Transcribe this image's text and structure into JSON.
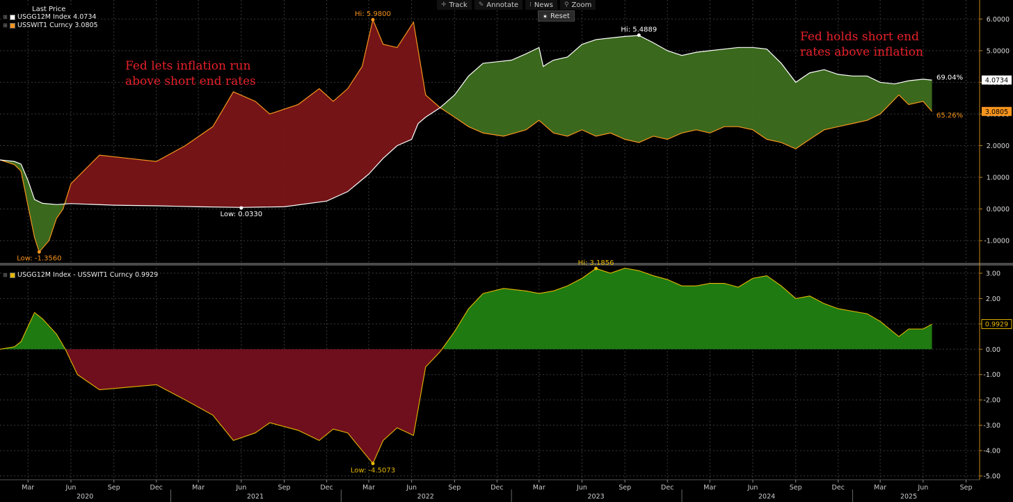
{
  "toolbar": {
    "track": "Track",
    "annotate": "Annotate",
    "news": "News",
    "zoom": "Zoom",
    "reset": "Reset"
  },
  "legend_top": {
    "header": "Last Price",
    "series": [
      {
        "label": "USGG12M Index  4.0734",
        "color": "#ffffff"
      },
      {
        "label": "USSWIT1 Curncy  3.0805",
        "color": "#f7941d"
      }
    ]
  },
  "legend_bottom": {
    "series": [
      {
        "label": "USGG12M Index - USSWIT1 Curncy  0.9929",
        "color": "#e6b800"
      }
    ]
  },
  "colors": {
    "rate_line": "#ffffff",
    "inflation_line": "#f7941d",
    "spread_line": "#e6b800",
    "fill_positive_top": "#3d6e1e",
    "fill_negative_top": "#7a1518",
    "fill_positive_bottom": "#1f7a12",
    "fill_negative_bottom": "#6f0f1e",
    "annotation_text": "#e8202a",
    "grid": "#3a3a3a",
    "axis": "#c8891c"
  },
  "chart_data": [
    {
      "type": "line",
      "panel": "top",
      "series": [
        {
          "name": "USGG12M Index",
          "last": "4.0734",
          "x": [
            "2020-01-01",
            "2020-02-01",
            "2020-02-15",
            "2020-03-01",
            "2020-03-15",
            "2020-04-01",
            "2020-05-01",
            "2020-06-01",
            "2020-09-01",
            "2020-12-01",
            "2021-03-01",
            "2021-06-01",
            "2021-09-01",
            "2021-12-01",
            "2022-01-15",
            "2022-03-01",
            "2022-04-01",
            "2022-05-01",
            "2022-06-01",
            "2022-06-15",
            "2022-07-01",
            "2022-08-01",
            "2022-09-01",
            "2022-10-01",
            "2022-11-01",
            "2022-12-01",
            "2023-01-01",
            "2023-02-01",
            "2023-03-01",
            "2023-03-10",
            "2023-03-20",
            "2023-04-01",
            "2023-05-01",
            "2023-06-01",
            "2023-07-01",
            "2023-08-01",
            "2023-09-01",
            "2023-10-01",
            "2023-11-01",
            "2023-12-01",
            "2024-01-01",
            "2024-02-01",
            "2024-03-01",
            "2024-04-01",
            "2024-05-01",
            "2024-06-01",
            "2024-07-01",
            "2024-08-01",
            "2024-09-01",
            "2024-10-01",
            "2024-11-01",
            "2024-12-01",
            "2025-01-01",
            "2025-02-01",
            "2025-03-01",
            "2025-04-01",
            "2025-05-01",
            "2025-06-01",
            "2025-06-20"
          ],
          "y": [
            1.55,
            1.5,
            1.42,
            0.9,
            0.3,
            0.18,
            0.14,
            0.17,
            0.12,
            0.1,
            0.07,
            0.05,
            0.07,
            0.25,
            0.55,
            1.1,
            1.6,
            2.0,
            2.2,
            2.7,
            2.9,
            3.2,
            3.6,
            4.2,
            4.6,
            4.65,
            4.7,
            4.9,
            5.1,
            4.5,
            4.6,
            4.7,
            4.8,
            5.2,
            5.35,
            5.4,
            5.45,
            5.48,
            5.25,
            5.0,
            4.85,
            4.95,
            5.0,
            5.05,
            5.1,
            5.1,
            5.05,
            4.6,
            4.0,
            4.3,
            4.4,
            4.25,
            4.2,
            4.2,
            4.0,
            3.95,
            4.05,
            4.1,
            4.07
          ]
        },
        {
          "name": "USSWIT1 Curncy",
          "last": "3.0805",
          "x": [
            "2020-01-01",
            "2020-02-01",
            "2020-02-15",
            "2020-03-01",
            "2020-03-15",
            "2020-03-25",
            "2020-04-15",
            "2020-05-01",
            "2020-05-15",
            "2020-06-01",
            "2020-08-01",
            "2020-10-01",
            "2020-12-01",
            "2021-02-01",
            "2021-04-01",
            "2021-05-15",
            "2021-07-01",
            "2021-08-01",
            "2021-10-01",
            "2021-11-15",
            "2021-12-15",
            "2022-01-15",
            "2022-02-15",
            "2022-03-10",
            "2022-04-01",
            "2022-05-01",
            "2022-06-05",
            "2022-07-01",
            "2022-08-01",
            "2022-09-01",
            "2022-10-01",
            "2022-11-01",
            "2022-12-15",
            "2023-02-01",
            "2023-03-01",
            "2023-04-01",
            "2023-05-01",
            "2023-06-01",
            "2023-07-01",
            "2023-08-01",
            "2023-09-01",
            "2023-10-01",
            "2023-11-01",
            "2023-12-01",
            "2024-01-01",
            "2024-02-01",
            "2024-03-01",
            "2024-04-01",
            "2024-05-01",
            "2024-06-01",
            "2024-07-01",
            "2024-08-01",
            "2024-09-01",
            "2024-10-01",
            "2024-11-01",
            "2024-12-01",
            "2025-01-01",
            "2025-02-01",
            "2025-03-01",
            "2025-04-10",
            "2025-05-01",
            "2025-06-01",
            "2025-06-20"
          ],
          "y": [
            1.55,
            1.4,
            1.2,
            0.1,
            -0.9,
            -1.356,
            -1.0,
            -0.3,
            0.0,
            0.8,
            1.7,
            1.6,
            1.5,
            2.0,
            2.6,
            3.7,
            3.4,
            3.0,
            3.3,
            3.8,
            3.4,
            3.8,
            4.5,
            5.98,
            5.2,
            5.1,
            5.9,
            3.6,
            3.2,
            2.9,
            2.6,
            2.4,
            2.3,
            2.5,
            2.8,
            2.4,
            2.3,
            2.5,
            2.3,
            2.4,
            2.2,
            2.1,
            2.3,
            2.2,
            2.4,
            2.5,
            2.4,
            2.6,
            2.6,
            2.5,
            2.2,
            2.1,
            1.9,
            2.2,
            2.5,
            2.6,
            2.7,
            2.8,
            3.0,
            3.6,
            3.3,
            3.4,
            3.08
          ]
        }
      ],
      "ylim": [
        -1.7,
        6.6
      ],
      "yticks": [
        "6.0000",
        "5.0000",
        "4.0000",
        "3.0000",
        "2.0000",
        "1.0000",
        "0.0000",
        "-1.0000"
      ],
      "annotations": [
        {
          "text": "Fed lets inflation run",
          "text2": "above short end rates"
        },
        {
          "text": "Fed holds short end",
          "text2": "rates above inflation"
        }
      ],
      "markers": [
        {
          "label": "Hi: 5.9800",
          "x": "2022-03-10",
          "y": 5.98,
          "color": "#f7941d"
        },
        {
          "label": "Hi: 5.4889",
          "x": "2023-10-01",
          "y": 5.4889,
          "color": "#ffffff"
        },
        {
          "label": "Low: 0.0330",
          "x": "2021-06-01",
          "y": 0.033,
          "color": "#ffffff"
        },
        {
          "label": "Low: -1.3560",
          "x": "2020-03-25",
          "y": -1.356,
          "color": "#f7941d"
        }
      ],
      "right_labels": [
        {
          "text": "69.04%",
          "y": 4.15,
          "color": "#ffffff"
        },
        {
          "text": "65.26%",
          "y": 2.95,
          "color": "#f7941d"
        }
      ],
      "value_boxes": [
        {
          "text": "4.0734",
          "y": 4.0734,
          "bg": "#ffffff",
          "fg": "#000000"
        },
        {
          "text": "3.0805",
          "y": 3.0805,
          "bg": "#f7941d",
          "fg": "#000000"
        }
      ]
    },
    {
      "type": "area",
      "panel": "bottom",
      "series": [
        {
          "name": "USGG12M Index - USSWIT1 Curncy",
          "last": "0.9929",
          "x": [
            "2020-01-01",
            "2020-02-01",
            "2020-02-15",
            "2020-03-01",
            "2020-03-15",
            "2020-04-01",
            "2020-05-01",
            "2020-05-20",
            "2020-06-15",
            "2020-08-01",
            "2020-10-01",
            "2020-12-01",
            "2021-02-01",
            "2021-04-01",
            "2021-05-15",
            "2021-07-01",
            "2021-08-01",
            "2021-10-01",
            "2021-11-15",
            "2021-12-15",
            "2022-01-15",
            "2022-02-15",
            "2022-03-10",
            "2022-04-01",
            "2022-05-01",
            "2022-06-05",
            "2022-07-01",
            "2022-08-01",
            "2022-09-01",
            "2022-10-01",
            "2022-11-01",
            "2022-12-15",
            "2023-02-01",
            "2023-03-01",
            "2023-04-01",
            "2023-05-01",
            "2023-06-01",
            "2023-07-01",
            "2023-08-01",
            "2023-09-01",
            "2023-10-01",
            "2023-11-01",
            "2023-12-01",
            "2024-01-01",
            "2024-02-01",
            "2024-03-01",
            "2024-04-01",
            "2024-05-01",
            "2024-06-01",
            "2024-07-01",
            "2024-08-01",
            "2024-09-01",
            "2024-10-01",
            "2024-11-01",
            "2024-12-01",
            "2025-01-01",
            "2025-02-01",
            "2025-03-01",
            "2025-04-10",
            "2025-05-01",
            "2025-06-01",
            "2025-06-20"
          ],
          "y": [
            0.0,
            0.1,
            0.3,
            0.9,
            1.45,
            1.2,
            0.6,
            0.0,
            -1.0,
            -1.6,
            -1.5,
            -1.4,
            -2.0,
            -2.6,
            -3.6,
            -3.3,
            -2.9,
            -3.2,
            -3.6,
            -3.15,
            -3.3,
            -4.0,
            -4.5073,
            -3.6,
            -3.1,
            -3.4,
            -0.7,
            -0.1,
            0.7,
            1.6,
            2.2,
            2.4,
            2.3,
            2.2,
            2.3,
            2.5,
            2.8,
            3.1856,
            3.0,
            3.2,
            3.1,
            2.9,
            2.75,
            2.5,
            2.5,
            2.6,
            2.6,
            2.45,
            2.8,
            2.9,
            2.5,
            2.0,
            2.1,
            1.8,
            1.6,
            1.5,
            1.4,
            1.1,
            0.5,
            0.8,
            0.8,
            0.99
          ]
        }
      ],
      "ylim": [
        -5.15,
        3.3
      ],
      "yticks": [
        "3.00",
        "2.00",
        "1.00",
        "0.00",
        "-1.00",
        "-2.00",
        "-3.00",
        "-4.00",
        "-5.00"
      ],
      "markers": [
        {
          "label": "Hi: 3.1856",
          "x": "2023-07-01",
          "y": 3.1856,
          "color": "#e6b800"
        },
        {
          "label": "Low: -4.5073",
          "x": "2022-03-10",
          "y": -4.5073,
          "color": "#e6b800"
        }
      ],
      "value_boxes": [
        {
          "text": "0.9929",
          "y": 0.9929,
          "bg": "#000000",
          "fg": "#e6b800"
        }
      ]
    }
  ],
  "x_axis": {
    "start": "2020-01-01",
    "end": "2025-09-30",
    "month_ticks": [
      {
        "date": "2020-03-01",
        "label": "Mar"
      },
      {
        "date": "2020-06-01",
        "label": "Jun"
      },
      {
        "date": "2020-09-01",
        "label": "Sep"
      },
      {
        "date": "2020-12-01",
        "label": "Dec"
      },
      {
        "date": "2021-03-01",
        "label": "Mar"
      },
      {
        "date": "2021-06-01",
        "label": "Jun"
      },
      {
        "date": "2021-09-01",
        "label": "Sep"
      },
      {
        "date": "2021-12-01",
        "label": "Dec"
      },
      {
        "date": "2022-03-01",
        "label": "Mar"
      },
      {
        "date": "2022-06-01",
        "label": "Jun"
      },
      {
        "date": "2022-09-01",
        "label": "Sep"
      },
      {
        "date": "2022-12-01",
        "label": "Dec"
      },
      {
        "date": "2023-03-01",
        "label": "Mar"
      },
      {
        "date": "2023-06-01",
        "label": "Jun"
      },
      {
        "date": "2023-09-01",
        "label": "Sep"
      },
      {
        "date": "2023-12-01",
        "label": "Dec"
      },
      {
        "date": "2024-03-01",
        "label": "Mar"
      },
      {
        "date": "2024-06-01",
        "label": "Jun"
      },
      {
        "date": "2024-09-01",
        "label": "Sep"
      },
      {
        "date": "2024-12-01",
        "label": "Dec"
      },
      {
        "date": "2025-03-01",
        "label": "Mar"
      },
      {
        "date": "2025-06-01",
        "label": "Jun"
      },
      {
        "date": "2025-09-01",
        "label": "Sep"
      }
    ],
    "years": [
      {
        "label": "2020",
        "date": "2020-07-01"
      },
      {
        "label": "2021",
        "date": "2021-07-01"
      },
      {
        "label": "2022",
        "date": "2022-07-01"
      },
      {
        "label": "2023",
        "date": "2023-07-01"
      },
      {
        "label": "2024",
        "date": "2024-07-01"
      },
      {
        "label": "2025",
        "date": "2025-05-01"
      }
    ]
  }
}
